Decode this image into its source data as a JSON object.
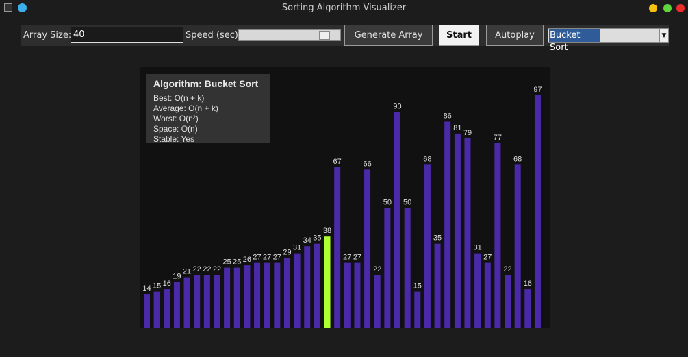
{
  "window": {
    "title": "Sorting Algorithm Visualizer"
  },
  "controls": {
    "array_size_label": "Array Size:",
    "array_size_value": "40",
    "speed_label": "Speed (sec):",
    "generate_button": "Generate Array",
    "start_button": "Start",
    "autoplay_button": "Autoplay",
    "algorithm_select": "Bucket Sort"
  },
  "info": {
    "title": "Algorithm: Bucket Sort",
    "lines": [
      "Best: O(n + k)",
      "Average: O(n + k)",
      "Worst: O(n²)",
      "Space: O(n)",
      "Stable: Yes"
    ]
  },
  "chart_data": {
    "type": "bar",
    "values": [
      14,
      15,
      16,
      19,
      21,
      22,
      22,
      22,
      25,
      25,
      26,
      27,
      27,
      27,
      29,
      31,
      34,
      35,
      38,
      67,
      27,
      27,
      66,
      22,
      50,
      90,
      50,
      15,
      68,
      35,
      86,
      81,
      79,
      31,
      27,
      77,
      22,
      68,
      16,
      97
    ],
    "colors": [
      "#4b2aaa",
      "#4b2aaa",
      "#4b2aaa",
      "#4b2aaa",
      "#4b2aaa",
      "#4b2aaa",
      "#4b2aaa",
      "#4b2aaa",
      "#4b2aaa",
      "#4b2aaa",
      "#4b2aaa",
      "#4b2aaa",
      "#4b2aaa",
      "#4b2aaa",
      "#4b2aaa",
      "#4b2aaa",
      "#4b2aaa",
      "#4b2aaa",
      "#adff2f",
      "#4b2aaa",
      "#4b2aaa",
      "#4b2aaa",
      "#4b2aaa",
      "#4b2aaa",
      "#4b2aaa",
      "#4b2aaa",
      "#4b2aaa",
      "#4b2aaa",
      "#4b2aaa",
      "#4b2aaa",
      "#4b2aaa",
      "#4b2aaa",
      "#4b2aaa",
      "#4b2aaa",
      "#4b2aaa",
      "#4b2aaa",
      "#4b2aaa",
      "#4b2aaa",
      "#4b2aaa",
      "#4b2aaa"
    ]
  }
}
